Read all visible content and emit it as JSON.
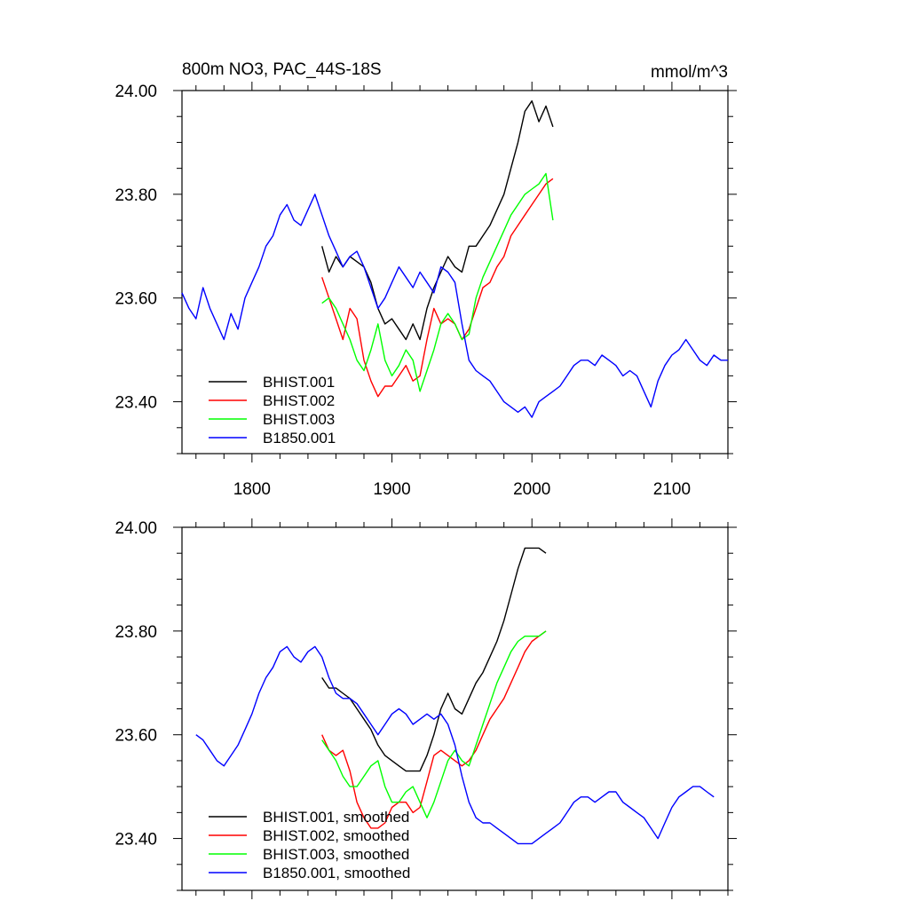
{
  "figure": {
    "title_left": "800m NO3, PAC_44S-18S",
    "title_right": "mmol/m^3"
  },
  "chart_data": [
    {
      "type": "line",
      "title": "800m NO3, PAC_44S-18S",
      "units": "mmol/m^3",
      "xlim": [
        1750,
        2140
      ],
      "ylim": [
        23.3,
        24.0
      ],
      "x_ticks": [
        1800,
        1900,
        2000,
        2100
      ],
      "x_tick_labels": [
        "1800",
        "1900",
        "2000",
        "2100"
      ],
      "y_ticks": [
        23.4,
        23.6,
        23.8,
        24.0
      ],
      "y_tick_labels": [
        "23.40",
        "23.60",
        "23.80",
        "24.00"
      ],
      "legend_position": "bottom-left",
      "grid": false,
      "series": [
        {
          "name": "BHIST.001",
          "color": "#000000",
          "x": [
            1850,
            1855,
            1860,
            1865,
            1870,
            1875,
            1880,
            1885,
            1890,
            1895,
            1900,
            1905,
            1910,
            1915,
            1920,
            1925,
            1930,
            1935,
            1940,
            1945,
            1950,
            1955,
            1960,
            1965,
            1970,
            1975,
            1980,
            1985,
            1990,
            1995,
            2000,
            2005,
            2010,
            2015
          ],
          "y": [
            23.7,
            23.65,
            23.68,
            23.66,
            23.68,
            23.67,
            23.66,
            23.63,
            23.58,
            23.55,
            23.56,
            23.54,
            23.52,
            23.55,
            23.52,
            23.58,
            23.62,
            23.65,
            23.68,
            23.66,
            23.65,
            23.7,
            23.7,
            23.72,
            23.74,
            23.77,
            23.8,
            23.85,
            23.9,
            23.96,
            23.98,
            23.94,
            23.97,
            23.93
          ]
        },
        {
          "name": "BHIST.002",
          "color": "#ff0000",
          "x": [
            1850,
            1855,
            1860,
            1865,
            1870,
            1875,
            1880,
            1885,
            1890,
            1895,
            1900,
            1905,
            1910,
            1915,
            1920,
            1925,
            1930,
            1935,
            1940,
            1945,
            1950,
            1955,
            1960,
            1965,
            1970,
            1975,
            1980,
            1985,
            1990,
            1995,
            2000,
            2005,
            2010,
            2015
          ],
          "y": [
            23.64,
            23.6,
            23.56,
            23.52,
            23.58,
            23.56,
            23.48,
            23.44,
            23.41,
            23.43,
            23.43,
            23.45,
            23.47,
            23.44,
            23.45,
            23.52,
            23.58,
            23.55,
            23.56,
            23.55,
            23.52,
            23.54,
            23.58,
            23.62,
            23.63,
            23.66,
            23.68,
            23.72,
            23.74,
            23.76,
            23.78,
            23.8,
            23.82,
            23.83
          ]
        },
        {
          "name": "BHIST.003",
          "color": "#00ff00",
          "x": [
            1850,
            1855,
            1860,
            1865,
            1870,
            1875,
            1880,
            1885,
            1890,
            1895,
            1900,
            1905,
            1910,
            1915,
            1920,
            1925,
            1930,
            1935,
            1940,
            1945,
            1950,
            1955,
            1960,
            1965,
            1970,
            1975,
            1980,
            1985,
            1990,
            1995,
            2000,
            2005,
            2010,
            2015
          ],
          "y": [
            23.59,
            23.6,
            23.58,
            23.55,
            23.52,
            23.48,
            23.46,
            23.5,
            23.55,
            23.48,
            23.45,
            23.47,
            23.5,
            23.48,
            23.42,
            23.46,
            23.5,
            23.55,
            23.57,
            23.55,
            23.52,
            23.53,
            23.6,
            23.64,
            23.67,
            23.7,
            23.73,
            23.76,
            23.78,
            23.8,
            23.81,
            23.82,
            23.84,
            23.75
          ]
        },
        {
          "name": "B1850.001",
          "color": "#0000ff",
          "x": [
            1750,
            1755,
            1760,
            1765,
            1770,
            1775,
            1780,
            1785,
            1790,
            1795,
            1800,
            1805,
            1810,
            1815,
            1820,
            1825,
            1830,
            1835,
            1840,
            1845,
            1850,
            1855,
            1860,
            1865,
            1870,
            1875,
            1880,
            1885,
            1890,
            1895,
            1900,
            1905,
            1910,
            1915,
            1920,
            1925,
            1930,
            1935,
            1940,
            1945,
            1950,
            1955,
            1960,
            1965,
            1970,
            1975,
            1980,
            1985,
            1990,
            1995,
            2000,
            2005,
            2010,
            2015,
            2020,
            2025,
            2030,
            2035,
            2040,
            2045,
            2050,
            2055,
            2060,
            2065,
            2070,
            2075,
            2080,
            2085,
            2090,
            2095,
            2100,
            2105,
            2110,
            2115,
            2120,
            2125,
            2130,
            2135,
            2140
          ],
          "y": [
            23.61,
            23.58,
            23.56,
            23.62,
            23.58,
            23.55,
            23.52,
            23.57,
            23.54,
            23.6,
            23.63,
            23.66,
            23.7,
            23.72,
            23.76,
            23.78,
            23.75,
            23.74,
            23.77,
            23.8,
            23.76,
            23.72,
            23.69,
            23.66,
            23.68,
            23.69,
            23.66,
            23.62,
            23.58,
            23.6,
            23.63,
            23.66,
            23.64,
            23.62,
            23.65,
            23.63,
            23.61,
            23.66,
            23.65,
            23.63,
            23.55,
            23.48,
            23.46,
            23.45,
            23.44,
            23.42,
            23.4,
            23.39,
            23.38,
            23.39,
            23.37,
            23.4,
            23.41,
            23.42,
            23.43,
            23.45,
            23.47,
            23.48,
            23.48,
            23.47,
            23.49,
            23.48,
            23.47,
            23.45,
            23.46,
            23.45,
            23.42,
            23.39,
            23.44,
            23.47,
            23.49,
            23.5,
            23.52,
            23.5,
            23.48,
            23.47,
            23.49,
            23.48,
            23.48
          ]
        }
      ]
    },
    {
      "type": "line",
      "xlim": [
        1750,
        2140
      ],
      "ylim": [
        23.3,
        24.0
      ],
      "x_ticks": [
        1800,
        1900,
        2000,
        2100
      ],
      "y_ticks": [
        23.4,
        23.6,
        23.8,
        24.0
      ],
      "y_tick_labels": [
        "23.40",
        "23.60",
        "23.80",
        "24.00"
      ],
      "legend_position": "bottom-left",
      "grid": false,
      "series": [
        {
          "name": "BHIST.001, smoothed",
          "color": "#000000",
          "x": [
            1850,
            1855,
            1860,
            1865,
            1870,
            1875,
            1880,
            1885,
            1890,
            1895,
            1900,
            1905,
            1910,
            1915,
            1920,
            1925,
            1930,
            1935,
            1940,
            1945,
            1950,
            1955,
            1960,
            1965,
            1970,
            1975,
            1980,
            1985,
            1990,
            1995,
            2000,
            2005,
            2010
          ],
          "y": [
            23.71,
            23.69,
            23.69,
            23.68,
            23.67,
            23.65,
            23.63,
            23.61,
            23.58,
            23.56,
            23.55,
            23.54,
            23.53,
            23.53,
            23.53,
            23.56,
            23.6,
            23.65,
            23.68,
            23.65,
            23.64,
            23.67,
            23.7,
            23.72,
            23.75,
            23.78,
            23.82,
            23.87,
            23.92,
            23.96,
            23.96,
            23.96,
            23.95
          ]
        },
        {
          "name": "BHIST.002, smoothed",
          "color": "#ff0000",
          "x": [
            1850,
            1855,
            1860,
            1865,
            1870,
            1875,
            1880,
            1885,
            1890,
            1895,
            1900,
            1905,
            1910,
            1915,
            1920,
            1925,
            1930,
            1935,
            1940,
            1945,
            1950,
            1955,
            1960,
            1965,
            1970,
            1975,
            1980,
            1985,
            1990,
            1995,
            2000,
            2005,
            2010
          ],
          "y": [
            23.6,
            23.57,
            23.56,
            23.57,
            23.53,
            23.47,
            23.44,
            23.42,
            23.42,
            23.43,
            23.46,
            23.47,
            23.47,
            23.45,
            23.46,
            23.51,
            23.56,
            23.57,
            23.56,
            23.55,
            23.54,
            23.55,
            23.57,
            23.6,
            23.63,
            23.65,
            23.67,
            23.7,
            23.73,
            23.76,
            23.78,
            23.79,
            23.8
          ]
        },
        {
          "name": "BHIST.003, smoothed",
          "color": "#00ff00",
          "x": [
            1850,
            1855,
            1860,
            1865,
            1870,
            1875,
            1880,
            1885,
            1890,
            1895,
            1900,
            1905,
            1910,
            1915,
            1920,
            1925,
            1930,
            1935,
            1940,
            1945,
            1950,
            1955,
            1960,
            1965,
            1970,
            1975,
            1980,
            1985,
            1990,
            1995,
            2000,
            2005,
            2010
          ],
          "y": [
            23.59,
            23.57,
            23.55,
            23.52,
            23.5,
            23.5,
            23.52,
            23.54,
            23.55,
            23.5,
            23.47,
            23.47,
            23.49,
            23.5,
            23.47,
            23.44,
            23.47,
            23.51,
            23.55,
            23.57,
            23.55,
            23.54,
            23.58,
            23.62,
            23.66,
            23.7,
            23.73,
            23.76,
            23.78,
            23.79,
            23.79,
            23.79,
            23.8
          ]
        },
        {
          "name": "B1850.001, smoothed",
          "color": "#0000ff",
          "x": [
            1760,
            1765,
            1770,
            1775,
            1780,
            1785,
            1790,
            1795,
            1800,
            1805,
            1810,
            1815,
            1820,
            1825,
            1830,
            1835,
            1840,
            1845,
            1850,
            1855,
            1860,
            1865,
            1870,
            1875,
            1880,
            1885,
            1890,
            1895,
            1900,
            1905,
            1910,
            1915,
            1920,
            1925,
            1930,
            1935,
            1940,
            1945,
            1950,
            1955,
            1960,
            1965,
            1970,
            1975,
            1980,
            1985,
            1990,
            1995,
            2000,
            2005,
            2010,
            2015,
            2020,
            2025,
            2030,
            2035,
            2040,
            2045,
            2050,
            2055,
            2060,
            2065,
            2070,
            2075,
            2080,
            2085,
            2090,
            2095,
            2100,
            2105,
            2110,
            2115,
            2120,
            2125,
            2130
          ],
          "y": [
            23.6,
            23.59,
            23.57,
            23.55,
            23.54,
            23.56,
            23.58,
            23.61,
            23.64,
            23.68,
            23.71,
            23.73,
            23.76,
            23.77,
            23.75,
            23.74,
            23.76,
            23.77,
            23.75,
            23.71,
            23.68,
            23.67,
            23.67,
            23.66,
            23.64,
            23.62,
            23.6,
            23.62,
            23.64,
            23.65,
            23.64,
            23.62,
            23.63,
            23.64,
            23.63,
            23.64,
            23.62,
            23.58,
            23.52,
            23.47,
            23.44,
            23.43,
            23.43,
            23.42,
            23.41,
            23.4,
            23.39,
            23.39,
            23.39,
            23.4,
            23.41,
            23.42,
            23.43,
            23.45,
            23.47,
            23.48,
            23.48,
            23.47,
            23.48,
            23.49,
            23.49,
            23.47,
            23.46,
            23.45,
            23.44,
            23.42,
            23.4,
            23.43,
            23.46,
            23.48,
            23.49,
            23.5,
            23.5,
            23.49,
            23.48
          ]
        }
      ]
    }
  ]
}
